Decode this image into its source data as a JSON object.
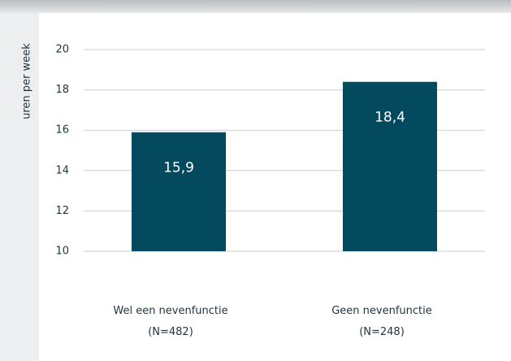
{
  "chart_data": {
    "type": "bar",
    "y_label": "uren per week",
    "categories": [
      "Wel een nevenfunctie\n(N=482)",
      "Geen nevenfunctie\n(N=248)"
    ],
    "values": [
      15.9,
      18.4
    ],
    "value_labels": [
      "15,9",
      "18,4"
    ],
    "color": "#044a5f",
    "ylim": [
      10,
      20
    ],
    "yticks": [
      10,
      12,
      14,
      16,
      18,
      20
    ],
    "grid": true
  }
}
